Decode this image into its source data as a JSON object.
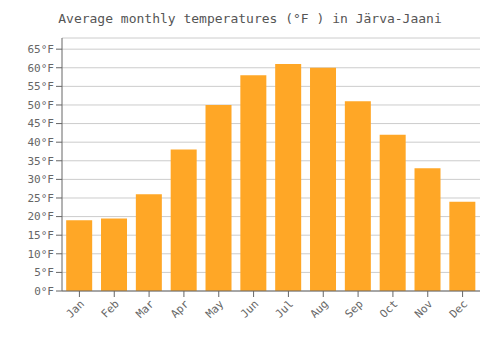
{
  "chart_data": {
    "type": "bar",
    "title": "Average monthly temperatures (°F ) in Järva-Jaani",
    "categories": [
      "Jan",
      "Feb",
      "Mar",
      "Apr",
      "May",
      "Jun",
      "Jul",
      "Aug",
      "Sep",
      "Oct",
      "Nov",
      "Dec"
    ],
    "values": [
      19,
      19.5,
      26,
      38,
      50,
      58,
      61,
      60,
      51,
      42,
      33,
      24
    ],
    "color": "#FFA726",
    "ylim": [
      0,
      68
    ],
    "yticks": [
      {
        "value": 0,
        "label": "0°F"
      },
      {
        "value": 5,
        "label": "5°F"
      },
      {
        "value": 10,
        "label": "10°F"
      },
      {
        "value": 15,
        "label": "15°F"
      },
      {
        "value": 20,
        "label": "20°F"
      },
      {
        "value": 25,
        "label": "25°F"
      },
      {
        "value": 30,
        "label": "30°F"
      },
      {
        "value": 35,
        "label": "35°F"
      },
      {
        "value": 40,
        "label": "40°F"
      },
      {
        "value": 45,
        "label": "45°F"
      },
      {
        "value": 50,
        "label": "50°F"
      },
      {
        "value": 55,
        "label": "55°F"
      },
      {
        "value": 60,
        "label": "60°F"
      },
      {
        "value": 65,
        "label": "65°F"
      }
    ],
    "grid": true
  }
}
